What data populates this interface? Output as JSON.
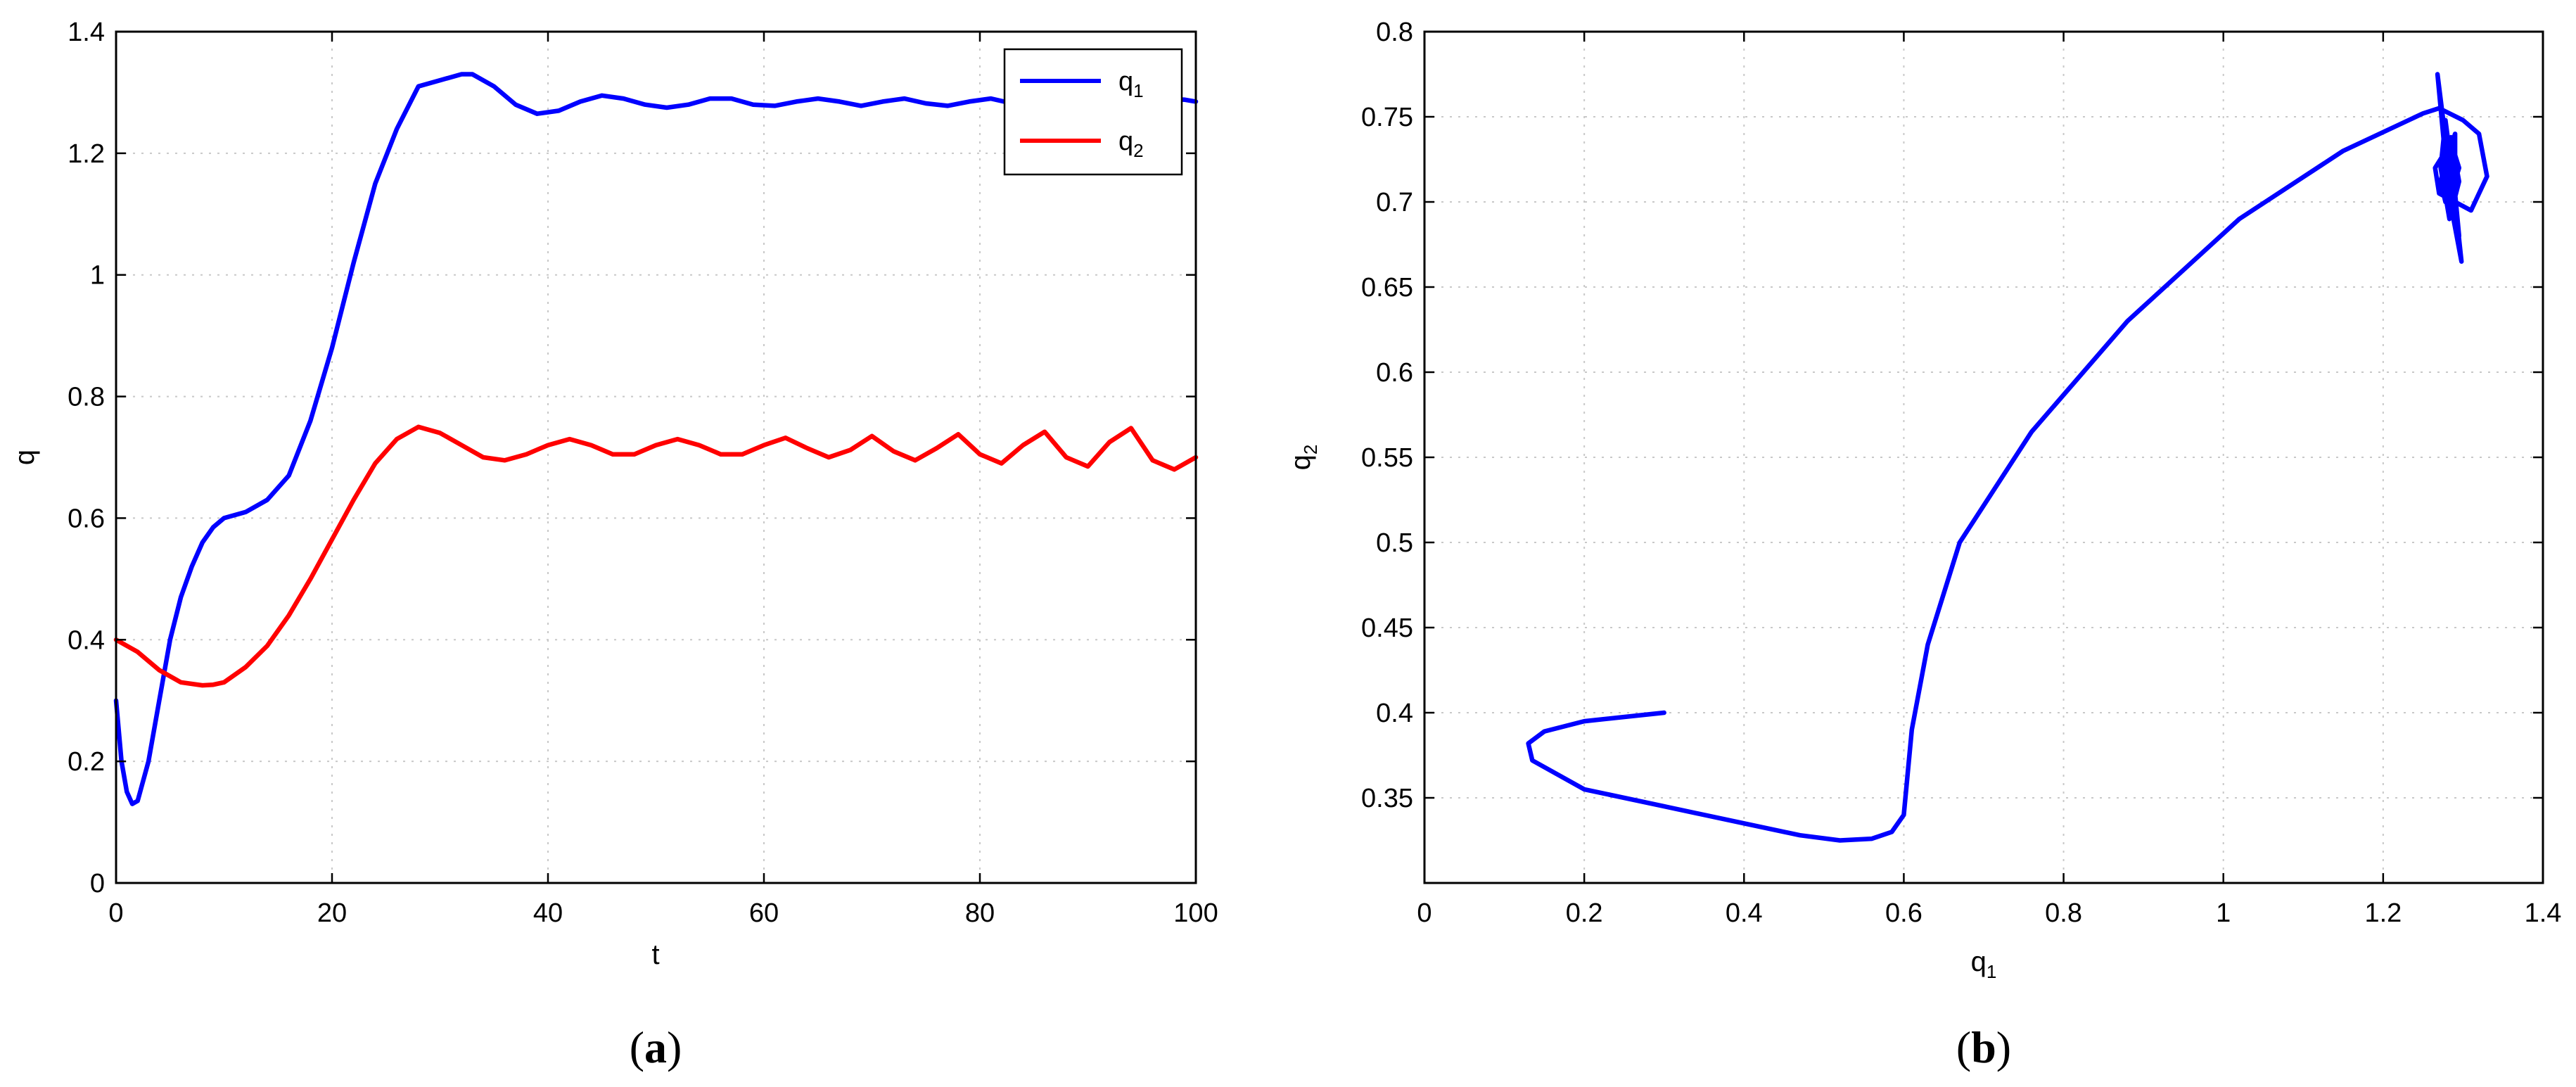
{
  "chart_data": [
    {
      "type": "line",
      "panel": "a",
      "caption": {
        "open": "(",
        "letter": "a",
        "close": ")"
      },
      "xlabel": "t",
      "ylabel": "q",
      "xlim": [
        0,
        100
      ],
      "ylim": [
        0,
        1.4
      ],
      "xticks": [
        "0",
        "20",
        "40",
        "60",
        "80",
        "100"
      ],
      "yticks": [
        "0",
        "0.2",
        "0.4",
        "0.6",
        "0.8",
        "1",
        "1.2",
        "1.4"
      ],
      "grid": true,
      "legend_position": "top-right",
      "legend": [
        {
          "base": "q",
          "sub": "1",
          "color": "#0000ff"
        },
        {
          "base": "q",
          "sub": "2",
          "color": "#ff0000"
        }
      ],
      "series": [
        {
          "name": "q1",
          "color": "#0000ff",
          "x": [
            0,
            0.5,
            1,
            1.5,
            2,
            3,
            4,
            5,
            6,
            7,
            8,
            9,
            10,
            12,
            14,
            16,
            18,
            20,
            22,
            24,
            26,
            28,
            30,
            32,
            33,
            35,
            37,
            39,
            41,
            43,
            45,
            47,
            49,
            51,
            53,
            55,
            57,
            59,
            61,
            63,
            65,
            67,
            69,
            71,
            73,
            75,
            77,
            79,
            81,
            83,
            85,
            87,
            89,
            91,
            93,
            95,
            97,
            99,
            100
          ],
          "y": [
            0.3,
            0.2,
            0.15,
            0.13,
            0.135,
            0.2,
            0.3,
            0.4,
            0.47,
            0.52,
            0.56,
            0.585,
            0.6,
            0.61,
            0.63,
            0.67,
            0.76,
            0.88,
            1.02,
            1.15,
            1.24,
            1.31,
            1.32,
            1.33,
            1.33,
            1.31,
            1.28,
            1.265,
            1.27,
            1.285,
            1.295,
            1.29,
            1.28,
            1.275,
            1.28,
            1.29,
            1.29,
            1.28,
            1.278,
            1.285,
            1.29,
            1.285,
            1.278,
            1.285,
            1.29,
            1.282,
            1.278,
            1.285,
            1.29,
            1.282,
            1.278,
            1.283,
            1.29,
            1.283,
            1.278,
            1.283,
            1.29,
            1.288,
            1.285
          ]
        },
        {
          "name": "q2",
          "color": "#ff0000",
          "x": [
            0,
            2,
            4,
            6,
            8,
            9,
            10,
            12,
            14,
            16,
            18,
            20,
            22,
            24,
            26,
            28,
            30,
            32,
            34,
            36,
            38,
            40,
            42,
            44,
            46,
            48,
            50,
            52,
            54,
            56,
            58,
            60,
            62,
            64,
            66,
            68,
            70,
            72,
            74,
            76,
            78,
            80,
            82,
            84,
            86,
            88,
            90,
            92,
            94,
            96,
            98,
            100
          ],
          "y": [
            0.4,
            0.38,
            0.35,
            0.33,
            0.325,
            0.326,
            0.33,
            0.355,
            0.39,
            0.44,
            0.5,
            0.565,
            0.63,
            0.69,
            0.73,
            0.75,
            0.74,
            0.72,
            0.7,
            0.695,
            0.705,
            0.72,
            0.73,
            0.72,
            0.705,
            0.705,
            0.72,
            0.73,
            0.72,
            0.705,
            0.705,
            0.72,
            0.732,
            0.715,
            0.7,
            0.712,
            0.735,
            0.71,
            0.695,
            0.715,
            0.738,
            0.705,
            0.69,
            0.72,
            0.742,
            0.7,
            0.685,
            0.725,
            0.748,
            0.695,
            0.68,
            0.7
          ]
        }
      ]
    },
    {
      "type": "line",
      "panel": "b",
      "caption": {
        "open": "(",
        "letter": "b",
        "close": ")"
      },
      "xlabel": {
        "base": "q",
        "sub": "1"
      },
      "ylabel": {
        "base": "q",
        "sub": "2"
      },
      "xlim": [
        0,
        1.4
      ],
      "ylim": [
        0.3,
        0.8
      ],
      "xticks": [
        "0",
        "0.2",
        "0.4",
        "0.6",
        "0.8",
        "1",
        "1.2",
        "1.4"
      ],
      "yticks": [
        "0.35",
        "0.4",
        "0.45",
        "0.5",
        "0.55",
        "0.6",
        "0.65",
        "0.7",
        "0.75",
        "0.8"
      ],
      "grid": true,
      "series": [
        {
          "color": "#0000ff",
          "x": [
            0.3,
            0.2,
            0.15,
            0.13,
            0.135,
            0.2,
            0.3,
            0.4,
            0.47,
            0.52,
            0.56,
            0.585,
            0.6,
            0.61,
            0.63,
            0.67,
            0.76,
            0.88,
            1.02,
            1.15,
            1.25,
            1.27,
            1.3,
            1.32,
            1.33,
            1.31,
            1.29,
            1.27,
            1.265,
            1.285,
            1.295,
            1.285,
            1.275,
            1.28,
            1.29,
            1.29,
            1.278,
            1.272,
            1.285,
            1.295,
            1.283,
            1.272,
            1.278,
            1.29,
            1.295,
            1.28,
            1.27,
            1.29,
            1.298,
            1.282,
            1.268,
            1.28,
            1.295,
            1.286,
            1.276
          ],
          "y": [
            0.4,
            0.395,
            0.389,
            0.382,
            0.372,
            0.355,
            0.345,
            0.335,
            0.328,
            0.325,
            0.326,
            0.33,
            0.34,
            0.39,
            0.44,
            0.5,
            0.565,
            0.63,
            0.69,
            0.73,
            0.752,
            0.755,
            0.748,
            0.74,
            0.715,
            0.695,
            0.7,
            0.705,
            0.72,
            0.735,
            0.72,
            0.705,
            0.71,
            0.725,
            0.74,
            0.72,
            0.7,
            0.712,
            0.738,
            0.712,
            0.69,
            0.72,
            0.748,
            0.705,
            0.68,
            0.725,
            0.765,
            0.7,
            0.665,
            0.705,
            0.775,
            0.73,
            0.675,
            0.7,
            0.74
          ]
        }
      ]
    }
  ]
}
